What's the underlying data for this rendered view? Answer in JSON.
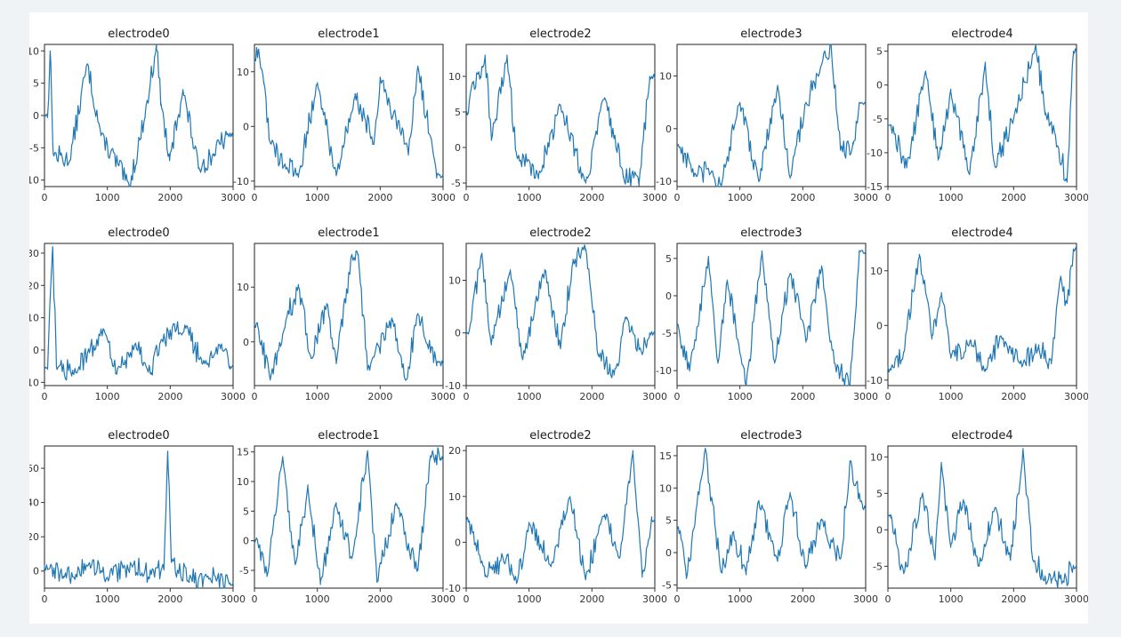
{
  "chart_data": [
    {
      "type": "line",
      "title": "electrode0",
      "xlim": [
        0,
        3000
      ],
      "ylim": [
        -11,
        11
      ],
      "xticks": [
        0,
        1000,
        2000,
        3000
      ],
      "yticks": [
        -10,
        -5,
        0,
        5,
        10
      ],
      "color": "#1f77b4",
      "peaks": [
        [
          50,
          0
        ],
        [
          90,
          10
        ],
        [
          140,
          -6
        ],
        [
          400,
          -7
        ],
        [
          680,
          8
        ],
        [
          900,
          -3
        ],
        [
          1350,
          -11
        ],
        [
          1600,
          0
        ],
        [
          1780,
          11
        ],
        [
          1850,
          2
        ],
        [
          1990,
          -7
        ],
        [
          2200,
          4
        ],
        [
          2450,
          -8
        ],
        [
          2700,
          -6
        ],
        [
          2900,
          -3
        ]
      ]
    },
    {
      "type": "line",
      "title": "electrode1",
      "xlim": [
        0,
        3000
      ],
      "ylim": [
        -11,
        15
      ],
      "xticks": [
        0,
        1000,
        2000,
        3000
      ],
      "yticks": [
        -10,
        0,
        10
      ],
      "color": "#1f77b4",
      "peaks": [
        [
          20,
          12
        ],
        [
          60,
          14
        ],
        [
          150,
          8
        ],
        [
          250,
          -3
        ],
        [
          480,
          -7
        ],
        [
          700,
          -9
        ],
        [
          1000,
          8
        ],
        [
          1300,
          -9
        ],
        [
          1600,
          6
        ],
        [
          1900,
          -3
        ],
        [
          2000,
          9
        ],
        [
          2450,
          -5
        ],
        [
          2600,
          11
        ],
        [
          2900,
          -9
        ]
      ]
    },
    {
      "type": "line",
      "title": "electrode2",
      "xlim": [
        0,
        3000
      ],
      "ylim": [
        -5.5,
        14.5
      ],
      "xticks": [
        0,
        1000,
        2000,
        3000
      ],
      "yticks": [
        -5,
        0,
        5,
        10
      ],
      "color": "#1f77b4",
      "peaks": [
        [
          10,
          5
        ],
        [
          100,
          9
        ],
        [
          220,
          10
        ],
        [
          300,
          13
        ],
        [
          400,
          1
        ],
        [
          650,
          13
        ],
        [
          800,
          -1
        ],
        [
          1150,
          -4
        ],
        [
          1500,
          6
        ],
        [
          1900,
          -5
        ],
        [
          2200,
          7
        ],
        [
          2500,
          -4
        ],
        [
          2750,
          -5
        ],
        [
          2920,
          10
        ]
      ]
    },
    {
      "type": "line",
      "title": "electrode3",
      "xlim": [
        0,
        3000
      ],
      "ylim": [
        -11,
        16
      ],
      "xticks": [
        0,
        1000,
        2000,
        3000
      ],
      "yticks": [
        -10,
        0,
        10
      ],
      "color": "#1f77b4",
      "peaks": [
        [
          20,
          -3
        ],
        [
          300,
          -9
        ],
        [
          550,
          -8
        ],
        [
          700,
          -11
        ],
        [
          1000,
          5
        ],
        [
          1300,
          -10
        ],
        [
          1600,
          8
        ],
        [
          1800,
          -9
        ],
        [
          2050,
          5
        ],
        [
          2250,
          10
        ],
        [
          2450,
          16
        ],
        [
          2600,
          -4
        ],
        [
          2800,
          -3
        ],
        [
          2900,
          5
        ]
      ]
    },
    {
      "type": "line",
      "title": "electrode4",
      "xlim": [
        0,
        3000
      ],
      "ylim": [
        -15,
        6
      ],
      "xticks": [
        0,
        1000,
        2000,
        3000
      ],
      "yticks": [
        -15,
        -10,
        -5,
        0,
        5
      ],
      "color": "#1f77b4",
      "peaks": [
        [
          50,
          -6
        ],
        [
          300,
          -12
        ],
        [
          600,
          2
        ],
        [
          800,
          -11
        ],
        [
          1000,
          -1
        ],
        [
          1300,
          -13
        ],
        [
          1550,
          3
        ],
        [
          1700,
          -12
        ],
        [
          2000,
          -5
        ],
        [
          2350,
          6
        ],
        [
          2500,
          -4
        ],
        [
          2700,
          -9
        ],
        [
          2850,
          -14
        ],
        [
          2950,
          5
        ]
      ]
    },
    {
      "type": "line",
      "title": "electrode0",
      "xlim": [
        0,
        3000
      ],
      "ylim": [
        -11,
        33
      ],
      "xticks": [
        0,
        1000,
        2000,
        3000
      ],
      "yticks": [
        -10,
        0,
        10,
        20,
        30
      ],
      "color": "#1f77b4",
      "peaks": [
        [
          50,
          -6
        ],
        [
          130,
          32
        ],
        [
          190,
          -5
        ],
        [
          450,
          -7
        ],
        [
          950,
          6
        ],
        [
          1150,
          -7
        ],
        [
          1450,
          2
        ],
        [
          1700,
          -7
        ],
        [
          1850,
          3
        ],
        [
          2250,
          7
        ],
        [
          2500,
          -4
        ],
        [
          2800,
          1
        ],
        [
          2950,
          -5
        ]
      ]
    },
    {
      "type": "line",
      "title": "electrode1",
      "xlim": [
        0,
        3000
      ],
      "ylim": [
        -8,
        18
      ],
      "xticks": [
        0,
        1000,
        2000,
        3000
      ],
      "yticks": [
        0,
        10
      ],
      "color": "#1f77b4",
      "peaks": [
        [
          50,
          3
        ],
        [
          250,
          -7
        ],
        [
          500,
          4
        ],
        [
          700,
          10
        ],
        [
          900,
          -3
        ],
        [
          1150,
          7
        ],
        [
          1300,
          -4
        ],
        [
          1550,
          16
        ],
        [
          1650,
          16
        ],
        [
          1800,
          -5
        ],
        [
          2200,
          4
        ],
        [
          2400,
          -7
        ],
        [
          2600,
          5
        ],
        [
          2900,
          -4
        ]
      ]
    },
    {
      "type": "line",
      "title": "electrode2",
      "xlim": [
        0,
        3000
      ],
      "ylim": [
        -10,
        17
      ],
      "xticks": [
        0,
        1000,
        2000,
        3000
      ],
      "yticks": [
        -10,
        0,
        10
      ],
      "color": "#1f77b4",
      "peaks": [
        [
          30,
          0
        ],
        [
          250,
          15
        ],
        [
          400,
          -2
        ],
        [
          700,
          12
        ],
        [
          900,
          -5
        ],
        [
          1250,
          12
        ],
        [
          1500,
          -3
        ],
        [
          1700,
          14
        ],
        [
          1900,
          16
        ],
        [
          2100,
          -4
        ],
        [
          2350,
          -8
        ],
        [
          2550,
          3
        ],
        [
          2800,
          -4
        ],
        [
          2920,
          0
        ]
      ]
    },
    {
      "type": "line",
      "title": "electrode3",
      "xlim": [
        0,
        3000
      ],
      "ylim": [
        -12,
        7
      ],
      "xticks": [
        0,
        1000,
        2000,
        3000
      ],
      "yticks": [
        -10,
        -5,
        0,
        5
      ],
      "color": "#1f77b4",
      "peaks": [
        [
          20,
          -4
        ],
        [
          200,
          -10
        ],
        [
          500,
          5
        ],
        [
          650,
          -9
        ],
        [
          800,
          2
        ],
        [
          1100,
          -12
        ],
        [
          1350,
          6
        ],
        [
          1550,
          -9
        ],
        [
          1800,
          3
        ],
        [
          2050,
          -6
        ],
        [
          2300,
          4
        ],
        [
          2500,
          -9
        ],
        [
          2750,
          -12
        ],
        [
          2900,
          6
        ]
      ]
    },
    {
      "type": "line",
      "title": "electrode4",
      "xlim": [
        0,
        3000
      ],
      "ylim": [
        -11,
        15
      ],
      "xticks": [
        0,
        1000,
        2000,
        3000
      ],
      "yticks": [
        -10,
        0,
        10
      ],
      "color": "#1f77b4",
      "peaks": [
        [
          50,
          -8
        ],
        [
          250,
          -5
        ],
        [
          500,
          13
        ],
        [
          700,
          -2
        ],
        [
          850,
          6
        ],
        [
          1000,
          -6
        ],
        [
          1300,
          -3
        ],
        [
          1550,
          -8
        ],
        [
          1800,
          -2
        ],
        [
          2100,
          -7
        ],
        [
          2400,
          -4
        ],
        [
          2600,
          -7
        ],
        [
          2750,
          9
        ],
        [
          2850,
          4
        ],
        [
          2950,
          14
        ]
      ]
    },
    {
      "type": "line",
      "title": "electrode0",
      "xlim": [
        0,
        3000
      ],
      "ylim": [
        -10,
        73
      ],
      "xticks": [
        0,
        1000,
        2000,
        3000
      ],
      "yticks": [
        0,
        20,
        40,
        60
      ],
      "color": "#1f77b4",
      "peaks": [
        [
          0,
          2
        ],
        [
          300,
          -3
        ],
        [
          700,
          4
        ],
        [
          1000,
          -4
        ],
        [
          1400,
          3
        ],
        [
          1700,
          -2
        ],
        [
          1900,
          2
        ],
        [
          1960,
          70
        ],
        [
          2020,
          5
        ],
        [
          2300,
          -5
        ],
        [
          2600,
          -3
        ],
        [
          2950,
          -7
        ]
      ]
    },
    {
      "type": "line",
      "title": "electrode1",
      "xlim": [
        0,
        3000
      ],
      "ylim": [
        -8,
        16
      ],
      "xticks": [
        0,
        1000,
        2000,
        3000
      ],
      "yticks": [
        -5,
        0,
        5,
        10,
        15
      ],
      "color": "#1f77b4",
      "peaks": [
        [
          50,
          0
        ],
        [
          200,
          -6
        ],
        [
          450,
          14
        ],
        [
          650,
          -4
        ],
        [
          850,
          9
        ],
        [
          1050,
          -7
        ],
        [
          1300,
          6
        ],
        [
          1550,
          -3
        ],
        [
          1800,
          15
        ],
        [
          1950,
          -7
        ],
        [
          2250,
          6
        ],
        [
          2600,
          -5
        ],
        [
          2800,
          14
        ],
        [
          2950,
          14
        ]
      ]
    },
    {
      "type": "line",
      "title": "electrode2",
      "xlim": [
        0,
        3000
      ],
      "ylim": [
        -10,
        21
      ],
      "xticks": [
        0,
        1000,
        2000,
        3000
      ],
      "yticks": [
        -10,
        0,
        10,
        20
      ],
      "color": "#1f77b4",
      "peaks": [
        [
          30,
          5
        ],
        [
          300,
          -7
        ],
        [
          650,
          -3
        ],
        [
          800,
          -9
        ],
        [
          1000,
          4
        ],
        [
          1350,
          -5
        ],
        [
          1650,
          10
        ],
        [
          1900,
          -8
        ],
        [
          2200,
          6
        ],
        [
          2450,
          -3
        ],
        [
          2650,
          20
        ],
        [
          2800,
          -7
        ],
        [
          2950,
          5
        ]
      ]
    },
    {
      "type": "line",
      "title": "electrode3",
      "xlim": [
        0,
        3000
      ],
      "ylim": [
        -5.5,
        16.5
      ],
      "xticks": [
        0,
        1000,
        2000,
        3000
      ],
      "yticks": [
        -5,
        0,
        5,
        10,
        15
      ],
      "color": "#1f77b4",
      "peaks": [
        [
          20,
          4
        ],
        [
          150,
          -4
        ],
        [
          450,
          16
        ],
        [
          700,
          -3
        ],
        [
          900,
          3
        ],
        [
          1100,
          -3
        ],
        [
          1300,
          8
        ],
        [
          1600,
          -1
        ],
        [
          1800,
          9
        ],
        [
          2050,
          -2
        ],
        [
          2300,
          5
        ],
        [
          2600,
          -1
        ],
        [
          2750,
          14
        ],
        [
          2950,
          7
        ]
      ]
    },
    {
      "type": "line",
      "title": "electrode4",
      "xlim": [
        0,
        3000
      ],
      "ylim": [
        -8,
        11.5
      ],
      "xticks": [
        0,
        1000,
        2000,
        3000
      ],
      "yticks": [
        -5,
        0,
        5,
        10
      ],
      "color": "#1f77b4",
      "peaks": [
        [
          50,
          2
        ],
        [
          250,
          -6
        ],
        [
          550,
          5
        ],
        [
          750,
          -4
        ],
        [
          850,
          9
        ],
        [
          1000,
          -2
        ],
        [
          1200,
          4
        ],
        [
          1450,
          -5
        ],
        [
          1700,
          3
        ],
        [
          1950,
          -4
        ],
        [
          2150,
          11
        ],
        [
          2300,
          -4
        ],
        [
          2600,
          -7
        ],
        [
          2800,
          -7
        ],
        [
          2950,
          -5
        ]
      ]
    }
  ]
}
